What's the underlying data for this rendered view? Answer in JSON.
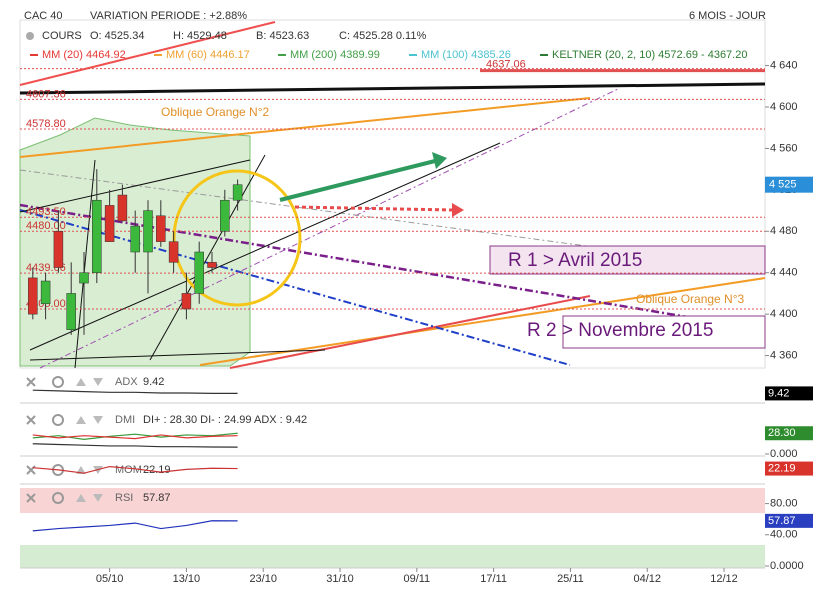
{
  "chart_data": [
    {
      "type": "candlestick",
      "title": "CAC 40",
      "subtitle": "VARIATION PERIODE : +2.88%",
      "period": "6 MOIS - JOUR",
      "quote": [
        "COURS",
        "O: 4525.34",
        "H: 4529.48",
        "B: 4523.63",
        "C: 4525.28 0.11%"
      ],
      "overlays": [
        {
          "text": "MM (20) 4464.92",
          "color": "#e53935"
        },
        {
          "text": "MM (60) 4446.17",
          "color": "#f0a030"
        },
        {
          "text": "MM (200) 4389.99",
          "color": "#43a047"
        },
        {
          "text": "MM (100) 4385.26",
          "color": "#4cc3d0"
        },
        {
          "text": "KELTNER (20, 2, 10) 4572.69 - 4367.20",
          "color": "#2e7d32"
        }
      ],
      "annotations": [
        "Oblique Orange N°2",
        "Oblique Orange N°3",
        "R 1 > Avril 2015",
        "R 2 > Novembre 2015"
      ],
      "x": [
        0,
        1,
        2,
        3,
        4,
        5,
        6,
        7,
        8,
        9,
        10,
        11,
        12,
        13,
        14,
        15,
        16
      ],
      "open": [
        4435,
        4410,
        4480,
        4385,
        4430,
        4440,
        4505,
        4515,
        4460,
        4460,
        4495,
        4470,
        4420,
        4420,
        4450,
        4480,
        4510
      ],
      "high": [
        4445,
        4440,
        4500,
        4450,
        4460,
        4540,
        4520,
        4525,
        4500,
        4510,
        4510,
        4480,
        4440,
        4470,
        4460,
        4520,
        4530
      ],
      "low": [
        4395,
        4395,
        4440,
        4380,
        4380,
        4430,
        4470,
        4490,
        4440,
        4420,
        4465,
        4440,
        4395,
        4410,
        4440,
        4475,
        4500
      ],
      "close": [
        4400,
        4432,
        4445,
        4420,
        4440,
        4510,
        4470,
        4490,
        4485,
        4500,
        4470,
        4450,
        4405,
        4460,
        4445,
        4510,
        4525
      ],
      "up_color": "#3cb83c",
      "down_color": "#d9342b",
      "xlim": [
        -1,
        57.2
      ],
      "ylim": [
        4348,
        4684
      ],
      "xticks": [
        {
          "value": 6,
          "label": "05/10"
        },
        {
          "value": 12,
          "label": "13/10"
        },
        {
          "value": 18,
          "label": "23/10"
        },
        {
          "value": 24,
          "label": "31/10"
        },
        {
          "value": 30,
          "label": "09/11"
        },
        {
          "value": 36,
          "label": "17/11"
        },
        {
          "value": 42,
          "label": "25/11"
        },
        {
          "value": 48,
          "label": "04/12"
        },
        {
          "value": 54,
          "label": "12/12"
        }
      ],
      "yticks": [
        {
          "value": 4360,
          "label": "4 360"
        },
        {
          "value": 4400,
          "label": "4 400"
        },
        {
          "value": 4440,
          "label": "4 440"
        },
        {
          "value": 4480,
          "label": "4 480"
        },
        {
          "value": 4520,
          "label": "4 520"
        },
        {
          "value": 4560,
          "label": "4 560"
        },
        {
          "value": 4600,
          "label": "4 600"
        },
        {
          "value": 4640,
          "label": "4 640"
        }
      ],
      "levels": [
        {
          "value": 4637.06,
          "label": "4637.06"
        },
        {
          "value": 4607.36,
          "label": "4607.36"
        },
        {
          "value": 4578.8,
          "label": "4578.80"
        },
        {
          "value": 4493.5,
          "label": "4493.50"
        },
        {
          "value": 4480,
          "label": "4480.00"
        },
        {
          "value": 4439.66,
          "label": "4439.66"
        },
        {
          "value": 4405,
          "label": "4405.00"
        }
      ],
      "last": {
        "value": 4525,
        "label": "4 525"
      }
    },
    {
      "type": "line",
      "title": "ADX",
      "legend": "9.42",
      "x": [
        0,
        2,
        4,
        6,
        8,
        10,
        12,
        14,
        16
      ],
      "xlim": [
        -1,
        57.2
      ],
      "ylim": [
        0,
        40
      ],
      "series": [
        {
          "color": "#333",
          "values": [
            14,
            13,
            12,
            11,
            11,
            10,
            10,
            9.5,
            9.42
          ]
        }
      ],
      "yticks": [],
      "last": {
        "value": 9.42,
        "label": "9.42",
        "color": "#000"
      }
    },
    {
      "type": "line",
      "title": "DMI",
      "legend": "DI+ : 28.30 DI- : 24.99 ADX : 9.42",
      "x": [
        0,
        2,
        4,
        6,
        8,
        10,
        12,
        14,
        16
      ],
      "xlim": [
        -1,
        57.2
      ],
      "ylim": [
        0,
        60
      ],
      "series": [
        {
          "color": "#3a9a3a",
          "values": [
            22,
            25,
            20,
            24,
            27,
            23,
            26,
            25,
            28.3
          ]
        },
        {
          "color": "#d33",
          "values": [
            26,
            22,
            25,
            23,
            21,
            26,
            22,
            24,
            24.99
          ]
        },
        {
          "color": "#333",
          "values": [
            14,
            13,
            12,
            11,
            11,
            10,
            10,
            9.5,
            9.42
          ]
        }
      ],
      "yticks": [
        {
          "value": 0,
          "label": "0.000"
        }
      ],
      "last": {
        "value": 28.3,
        "label": "28.30",
        "color": "#2e8b2e"
      }
    },
    {
      "type": "line",
      "title": "MOM",
      "legend": "22.19",
      "x": [
        0,
        2,
        4,
        6,
        8,
        10,
        12,
        14,
        16
      ],
      "xlim": [
        -1,
        57.2
      ],
      "ylim": [
        -100,
        100
      ],
      "series": [
        {
          "color": "#c33",
          "values": [
            30,
            10,
            -20,
            40,
            20,
            -10,
            15,
            25,
            22.19
          ]
        }
      ],
      "yticks": [],
      "last": {
        "value": 22.19,
        "label": "22.19",
        "color": "#d9342b"
      }
    },
    {
      "type": "line",
      "title": "RSI",
      "legend": "57.87",
      "x": [
        0,
        2,
        4,
        6,
        8,
        10,
        12,
        14,
        16
      ],
      "xlim": [
        -1,
        57.2
      ],
      "ylim": [
        0,
        100
      ],
      "series": [
        {
          "color": "#2233bb",
          "values": [
            45,
            48,
            50,
            52,
            55,
            48,
            52,
            58,
            57.87
          ]
        }
      ],
      "yticks": [
        {
          "value": 80,
          "label": "80.00"
        },
        {
          "value": 40,
          "label": "40.00"
        },
        {
          "value": 0,
          "label": "0.0000"
        }
      ],
      "last": {
        "value": 57.87,
        "label": "57.87",
        "color": "#2a3fc0"
      }
    }
  ]
}
